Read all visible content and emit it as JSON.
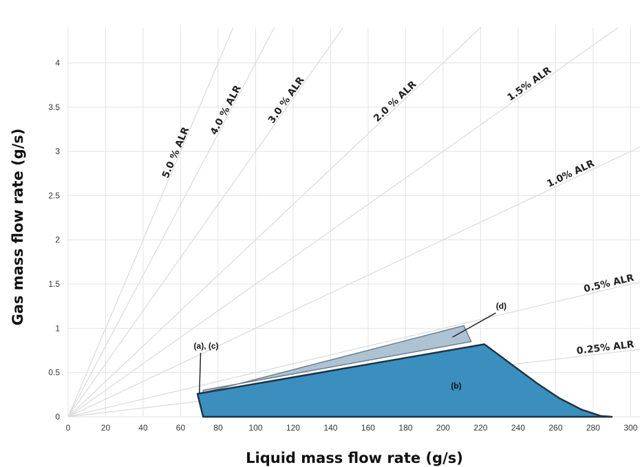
{
  "chart_data": {
    "type": "line",
    "title": "",
    "xlabel": "Liquid mass flow rate (g/s)",
    "ylabel": "Gas mass flow rate (g/s)",
    "xlim": [
      0,
      305
    ],
    "ylim": [
      0,
      4.4
    ],
    "x_ticks": [
      0,
      20,
      40,
      60,
      80,
      100,
      120,
      140,
      160,
      180,
      200,
      220,
      240,
      260,
      280,
      300
    ],
    "y_ticks": [
      0,
      0.5,
      1,
      1.5,
      2,
      2.5,
      3,
      3.5,
      4
    ],
    "grid": true,
    "alr_lines": [
      {
        "label": "5.0 % ALR",
        "ratio": 0.05
      },
      {
        "label": "4.0 % ALR",
        "ratio": 0.04
      },
      {
        "label": "3.0 % ALR",
        "ratio": 0.03
      },
      {
        "label": "2.0 % ALR",
        "ratio": 0.02
      },
      {
        "label": "1.5% ALR",
        "ratio": 0.015
      },
      {
        "label": "1.0% ALR",
        "ratio": 0.01
      },
      {
        "label": "0.5% ALR",
        "ratio": 0.005
      },
      {
        "label": "0.25% ALR",
        "ratio": 0.0025
      }
    ],
    "regions": [
      {
        "label": "(d)",
        "color": "#9fb9cd",
        "points": [
          [
            72,
            0.27
          ],
          [
            211,
            1.03
          ],
          [
            215,
            0.85
          ],
          [
            72,
            0.3
          ]
        ]
      },
      {
        "label": "(b)",
        "color": "#3a8fbf",
        "points": [
          [
            69,
            0.26
          ],
          [
            222,
            0.82
          ],
          [
            236,
            0.6
          ],
          [
            250,
            0.38
          ],
          [
            262,
            0.21
          ],
          [
            274,
            0.08
          ],
          [
            284,
            0.01
          ],
          [
            290,
            0.0
          ],
          [
            72,
            0.0
          ]
        ]
      }
    ],
    "annotations": [
      {
        "text": "(a), (c)",
        "at": [
          70,
          0.26
        ],
        "text_pos": [
          67,
          0.77
        ]
      },
      {
        "text": "(d)",
        "at": [
          205,
          0.9
        ],
        "text_pos": [
          231,
          1.22
        ]
      },
      {
        "text": "(b)",
        "at": [
          207,
          0.32
        ],
        "text_pos": [
          207,
          0.32
        ]
      }
    ]
  }
}
